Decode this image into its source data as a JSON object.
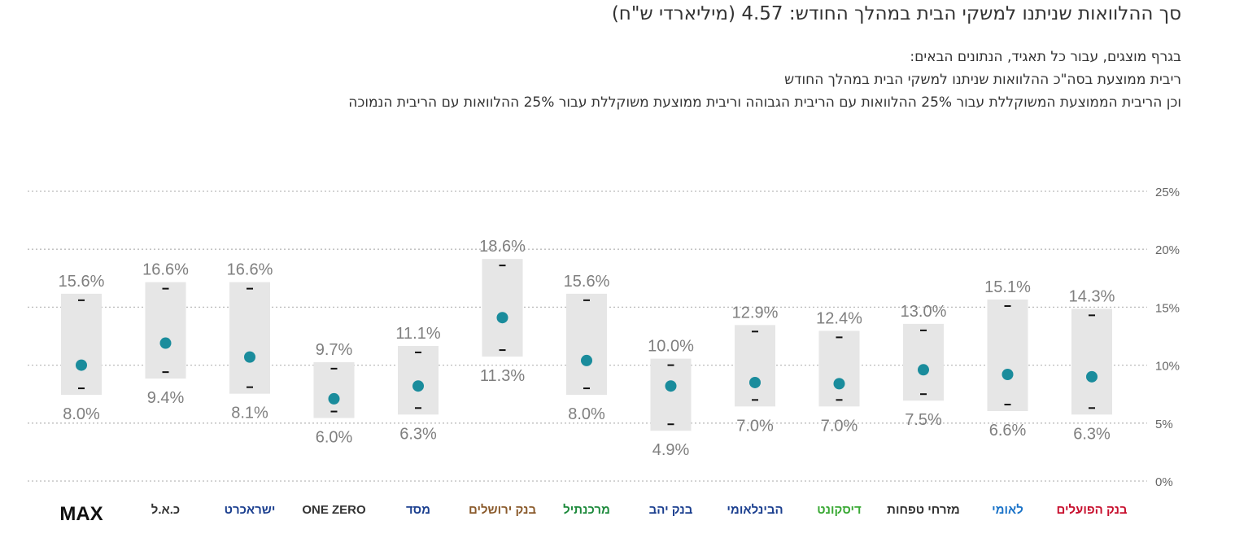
{
  "header": {
    "title": "סך ההלוואות שניתנו למשקי הבית במהלך החודש: 4.57 (מיליארדי ש\"ח)",
    "desc_line1": "בגרף מוצגים, עבור כל תאגיד, הנתונים הבאים:",
    "desc_line2": "ריבית ממוצעת בסה\"כ ההלוואות שניתנו למשקי הבית במהלך החודש",
    "desc_line3": "וכן הריבית הממוצעת המשוקללת עבור 25% ההלוואות עם הריבית הגבוהה וריבית ממוצעת משוקללת עבור 25% ההלוואות עם הריבית הנמוכה"
  },
  "colors": {
    "box": "#e6e6e6",
    "dot": "#1a8c9c",
    "grid": "#bbbbbb",
    "label": "#7f7f7f",
    "tick": "#666666"
  },
  "chart_data": {
    "type": "range-dot",
    "ylim": [
      0,
      25
    ],
    "y_ticks": [
      "0%",
      "5%",
      "10%",
      "15%",
      "20%",
      "25%"
    ],
    "grid": "dotted horizontal",
    "categories": [
      "MAX",
      "כ.א.ל",
      "ישראכרט",
      "ONE ZERO",
      "מסד",
      "בנק ירושלים",
      "מרכנתיל",
      "בנק יהב",
      "הבינלאומי",
      "דיסקונט",
      "מזרחי טפחות",
      "לאומי",
      "בנק הפועלים"
    ],
    "high": [
      15.6,
      16.6,
      16.6,
      9.7,
      11.1,
      18.6,
      15.6,
      10.0,
      12.9,
      12.4,
      13.0,
      15.1,
      14.3
    ],
    "high_labels": [
      "15.6%",
      "16.6%",
      "16.6%",
      "9.7%",
      "11.1%",
      "18.6%",
      "15.6%",
      "10.0%",
      "12.9%",
      "12.4%",
      "13.0%",
      "15.1%",
      "14.3%"
    ],
    "low": [
      8.0,
      9.4,
      8.1,
      6.0,
      6.3,
      11.3,
      8.0,
      4.9,
      7.0,
      7.0,
      7.5,
      6.6,
      6.3
    ],
    "low_labels": [
      "8.0%",
      "9.4%",
      "8.1%",
      "6.0%",
      "6.3%",
      "11.3%",
      "8.0%",
      "4.9%",
      "7.0%",
      "7.0%",
      "7.5%",
      "6.6%",
      "6.3%"
    ],
    "average": [
      10.0,
      11.9,
      10.7,
      7.1,
      8.2,
      14.1,
      10.4,
      8.2,
      8.5,
      8.4,
      9.6,
      9.2,
      9.0
    ]
  },
  "logos": [
    {
      "text": "MAX",
      "color": "#111111"
    },
    {
      "text": "כ.א.ל",
      "color": "#333333"
    },
    {
      "text": "ישראכרט",
      "color": "#1b3f8f"
    },
    {
      "text": "ONE ZERO",
      "color": "#333333"
    },
    {
      "text": "מסד",
      "color": "#1b3f8f"
    },
    {
      "text": "בנק ירושלים",
      "color": "#8a5a2b"
    },
    {
      "text": "מרכנתיל",
      "color": "#1d8a3c"
    },
    {
      "text": "בנק יהב",
      "color": "#1b3f8f"
    },
    {
      "text": "הבינלאומי",
      "color": "#1b3f8f"
    },
    {
      "text": "דיסקונט",
      "color": "#3aa935"
    },
    {
      "text": "מזרחי טפחות",
      "color": "#333333"
    },
    {
      "text": "לאומי",
      "color": "#1a73c8"
    },
    {
      "text": "בנק הפועלים",
      "color": "#c8102e"
    }
  ]
}
